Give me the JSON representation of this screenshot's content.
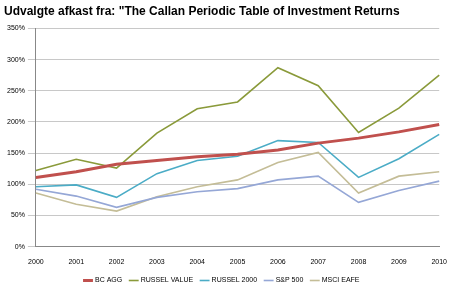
{
  "chart_data": {
    "type": "line",
    "title": "Udvalgte afkast fra: \"The Callan Periodic Table of Investment Returns",
    "categories": [
      "2000",
      "2001",
      "2002",
      "2003",
      "2004",
      "2005",
      "2006",
      "2007",
      "2008",
      "2009",
      "2010"
    ],
    "series": [
      {
        "name": "BC AGG",
        "color": "#c0504d",
        "values": [
          111,
          120,
          132,
          138,
          144,
          148,
          155,
          166,
          174,
          184,
          196
        ]
      },
      {
        "name": "RUSSEL VALUE",
        "color": "#8a9a3a",
        "values": [
          122,
          140,
          126,
          182,
          221,
          232,
          287,
          258,
          183,
          222,
          275
        ]
      },
      {
        "name": "RUSSEL 2000",
        "color": "#4bacc6",
        "values": [
          96,
          99,
          79,
          117,
          138,
          145,
          170,
          167,
          111,
          141,
          180
        ]
      },
      {
        "name": "S&P 500",
        "color": "#95a7d6",
        "values": [
          92,
          81,
          63,
          79,
          88,
          93,
          107,
          113,
          71,
          90,
          105
        ]
      },
      {
        "name": "MSCI EAFE",
        "color": "#c4bd97",
        "values": [
          86,
          68,
          57,
          80,
          96,
          107,
          135,
          151,
          86,
          113,
          120
        ]
      }
    ],
    "ylim": [
      0,
      350
    ],
    "yticks": [
      {
        "value": 0,
        "label": "0%"
      },
      {
        "value": 50,
        "label": "50%"
      },
      {
        "value": 100,
        "label": "100%"
      },
      {
        "value": 150,
        "label": "150%"
      },
      {
        "value": 200,
        "label": "200%"
      },
      {
        "value": 250,
        "label": "250%"
      },
      {
        "value": 300,
        "label": "300%"
      },
      {
        "value": 350,
        "label": "350%"
      }
    ],
    "grid": true,
    "legend": "bottom"
  }
}
